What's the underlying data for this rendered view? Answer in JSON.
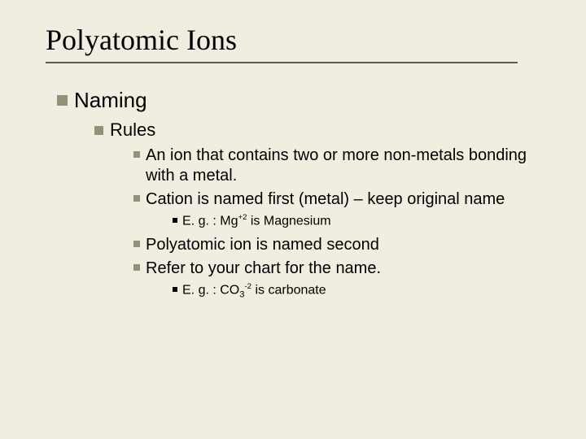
{
  "colors": {
    "background": "#efeee0",
    "title_rule": "#5e5e46",
    "bullet": "#92927a",
    "bullet_small": "#000000",
    "text": "#000000"
  },
  "title": "Polyatomic Ions",
  "l1": "Naming",
  "l2": "Rules",
  "l3a": "An ion that contains two or more non-metals bonding with a metal.",
  "l3b": "Cation is named first (metal) – keep original name",
  "eg1_prefix": "E. g. : Mg",
  "eg1_sup": "+2",
  "eg1_suffix": " is Magnesium",
  "l3c": "Polyatomic ion is named second",
  "l3d": "Refer to your chart for the name.",
  "eg2_prefix": "E. g. : CO",
  "eg2_sub": "3",
  "eg2_sup": "-2",
  "eg2_suffix": " is carbonate"
}
